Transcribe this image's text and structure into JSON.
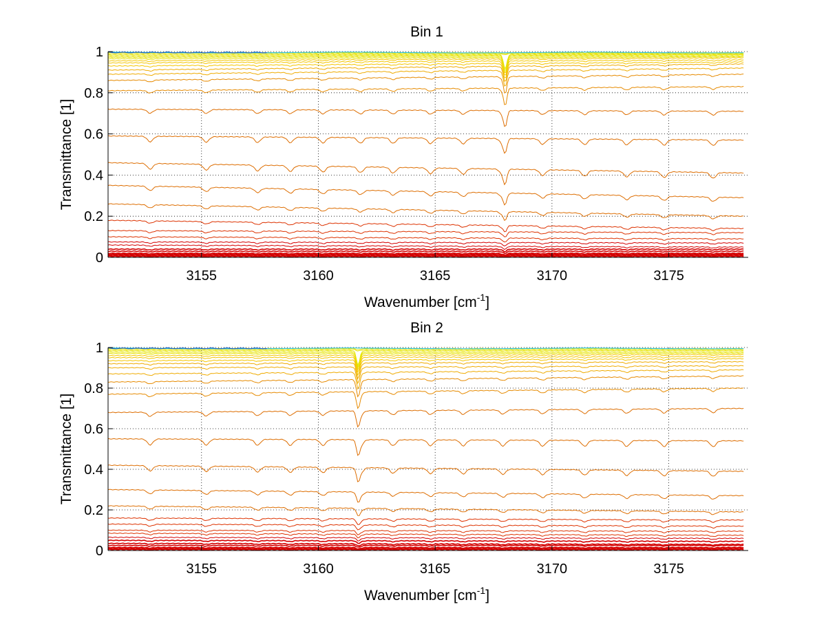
{
  "chart_data": [
    {
      "type": "line",
      "title": "Bin 1",
      "xlabel": "Wavenumber [cm",
      "xlabel_sup": "-1",
      "xlabel_end": "]",
      "ylabel": "Transmittance [1]",
      "xlim": [
        3151,
        3178.4
      ],
      "ylim": [
        0,
        1
      ],
      "xticks": [
        3155,
        3160,
        3165,
        3170,
        3175
      ],
      "yticks": [
        0,
        0.2,
        0.4,
        0.6,
        0.8,
        1
      ],
      "ytick_labels": [
        "0",
        "0.2",
        "0.4",
        "0.6",
        "0.8",
        "1"
      ],
      "grid": true,
      "x_range": [
        3151.0,
        3178.2
      ],
      "dips": [
        3152.8,
        3155.2,
        3157.4,
        3158.8,
        3160.2,
        3161.8,
        3163.2,
        3164.8,
        3166.2,
        3167.9,
        3169.6,
        3171.4,
        3173.2,
        3174.8,
        3176.9
      ],
      "strong_dip": 3168.0,
      "series_levels": [
        {
          "start": 0.005,
          "end": 0.005
        },
        {
          "start": 0.01,
          "end": 0.01
        },
        {
          "start": 0.015,
          "end": 0.015
        },
        {
          "start": 0.02,
          "end": 0.02
        },
        {
          "start": 0.03,
          "end": 0.03
        },
        {
          "start": 0.04,
          "end": 0.04
        },
        {
          "start": 0.06,
          "end": 0.05
        },
        {
          "start": 0.075,
          "end": 0.07
        },
        {
          "start": 0.1,
          "end": 0.09
        },
        {
          "start": 0.13,
          "end": 0.12
        },
        {
          "start": 0.18,
          "end": 0.14
        },
        {
          "start": 0.26,
          "end": 0.2
        },
        {
          "start": 0.35,
          "end": 0.29
        },
        {
          "start": 0.46,
          "end": 0.41
        },
        {
          "start": 0.59,
          "end": 0.57
        },
        {
          "start": 0.72,
          "end": 0.71
        },
        {
          "start": 0.81,
          "end": 0.83
        },
        {
          "start": 0.86,
          "end": 0.89
        },
        {
          "start": 0.89,
          "end": 0.92
        },
        {
          "start": 0.91,
          "end": 0.94
        },
        {
          "start": 0.93,
          "end": 0.95
        },
        {
          "start": 0.945,
          "end": 0.96
        },
        {
          "start": 0.955,
          "end": 0.97
        },
        {
          "start": 0.965,
          "end": 0.975
        },
        {
          "start": 0.972,
          "end": 0.98
        },
        {
          "start": 0.978,
          "end": 0.985
        },
        {
          "start": 0.984,
          "end": 0.988
        },
        {
          "start": 0.99,
          "end": 0.992
        },
        {
          "start": 0.995,
          "end": 0.995
        }
      ]
    },
    {
      "type": "line",
      "title": "Bin 2",
      "xlabel": "Wavenumber [cm",
      "xlabel_sup": "-1",
      "xlabel_end": "]",
      "ylabel": "Transmittance [1]",
      "xlim": [
        3151,
        3178.4
      ],
      "ylim": [
        0,
        1
      ],
      "xticks": [
        3155,
        3160,
        3165,
        3170,
        3175
      ],
      "yticks": [
        0,
        0.2,
        0.4,
        0.6,
        0.8,
        1
      ],
      "ytick_labels": [
        "0",
        "0.2",
        "0.4",
        "0.6",
        "0.8",
        "1"
      ],
      "grid": true,
      "x_range": [
        3151.0,
        3178.2
      ],
      "dips": [
        3152.8,
        3155.2,
        3157.4,
        3158.8,
        3160.2,
        3161.8,
        3163.2,
        3164.8,
        3166.2,
        3167.9,
        3169.6,
        3171.4,
        3173.2,
        3174.8,
        3176.9
      ],
      "strong_dip": 3161.7,
      "series_levels": [
        {
          "start": 0.005,
          "end": 0.005
        },
        {
          "start": 0.01,
          "end": 0.01
        },
        {
          "start": 0.015,
          "end": 0.015
        },
        {
          "start": 0.025,
          "end": 0.025
        },
        {
          "start": 0.035,
          "end": 0.03
        },
        {
          "start": 0.05,
          "end": 0.045
        },
        {
          "start": 0.065,
          "end": 0.06
        },
        {
          "start": 0.085,
          "end": 0.075
        },
        {
          "start": 0.1,
          "end": 0.095
        },
        {
          "start": 0.13,
          "end": 0.12
        },
        {
          "start": 0.16,
          "end": 0.15
        },
        {
          "start": 0.22,
          "end": 0.19
        },
        {
          "start": 0.3,
          "end": 0.27
        },
        {
          "start": 0.42,
          "end": 0.39
        },
        {
          "start": 0.55,
          "end": 0.54
        },
        {
          "start": 0.68,
          "end": 0.7
        },
        {
          "start": 0.77,
          "end": 0.8
        },
        {
          "start": 0.83,
          "end": 0.86
        },
        {
          "start": 0.87,
          "end": 0.89
        },
        {
          "start": 0.9,
          "end": 0.91
        },
        {
          "start": 0.92,
          "end": 0.93
        },
        {
          "start": 0.935,
          "end": 0.945
        },
        {
          "start": 0.95,
          "end": 0.955
        },
        {
          "start": 0.96,
          "end": 0.965
        },
        {
          "start": 0.97,
          "end": 0.972
        },
        {
          "start": 0.977,
          "end": 0.978
        },
        {
          "start": 0.984,
          "end": 0.985
        },
        {
          "start": 0.99,
          "end": 0.99
        },
        {
          "start": 0.995,
          "end": 0.995
        }
      ]
    }
  ]
}
